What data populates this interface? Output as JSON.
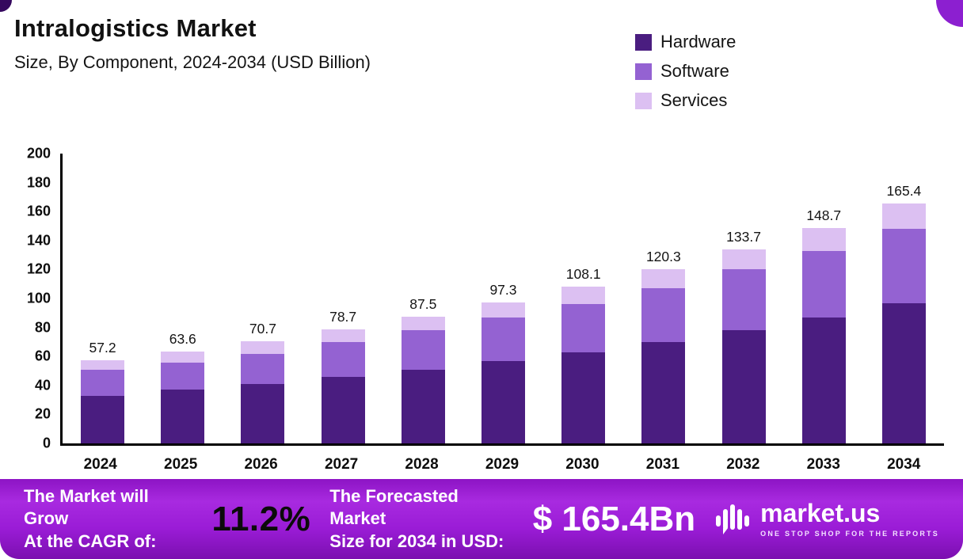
{
  "header": {
    "title": "Intralogistics Market",
    "subtitle": "Size, By Component, 2024-2034 (USD Billion)"
  },
  "legend": {
    "items": [
      {
        "label": "Hardware",
        "color": "#4a1d80"
      },
      {
        "label": "Software",
        "color": "#9462d2"
      },
      {
        "label": "Services",
        "color": "#dcc0f2"
      }
    ]
  },
  "chart_data": {
    "type": "bar",
    "stacked": true,
    "title": "Intralogistics Market Size, By Component, 2024-2034 (USD Billion)",
    "categories": [
      "2024",
      "2025",
      "2026",
      "2027",
      "2028",
      "2029",
      "2030",
      "2031",
      "2032",
      "2033",
      "2034"
    ],
    "series": [
      {
        "name": "Hardware",
        "color": "#4a1d80",
        "values": [
          33,
          37,
          41,
          46,
          51,
          57,
          63,
          70,
          78,
          87,
          97
        ]
      },
      {
        "name": "Software",
        "color": "#9462d2",
        "values": [
          18,
          19,
          21,
          24,
          27,
          30,
          33,
          37,
          42,
          46,
          51
        ]
      },
      {
        "name": "Services",
        "color": "#dcc0f2",
        "values": [
          6.2,
          7.6,
          8.7,
          8.7,
          9.5,
          10.3,
          12.1,
          13.3,
          13.7,
          15.7,
          17.4
        ]
      }
    ],
    "totals": [
      "57.2",
      "63.6",
      "70.7",
      "78.7",
      "87.5",
      "97.3",
      "108.1",
      "120.3",
      "133.7",
      "148.7",
      "165.4"
    ],
    "xlabel": "",
    "ylabel": "",
    "ylim": [
      0,
      200
    ],
    "yticks": [
      0,
      20,
      40,
      60,
      80,
      100,
      120,
      140,
      160,
      180,
      200
    ],
    "grid": false,
    "legend_position": "top-right"
  },
  "footer": {
    "cagr_label_line1": "The Market will Grow",
    "cagr_label_line2": "At the CAGR of:",
    "cagr_value": "11.2%",
    "forecast_label_line1": "The Forecasted Market",
    "forecast_label_line2": "Size for 2034 in USD:",
    "forecast_value": "$ 165.4Bn",
    "brand": {
      "name": "market.us",
      "tagline": "ONE STOP SHOP FOR THE REPORTS"
    }
  },
  "colors": {
    "hardware": "#4a1d80",
    "software": "#9462d2",
    "services": "#dcc0f2",
    "footer_accent": "#9a1cd6",
    "cagr_value_text": "#0b0b0b"
  }
}
